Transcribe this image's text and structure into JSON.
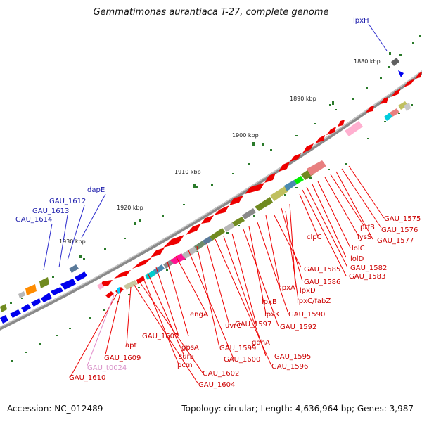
{
  "title": "Gemmatimonas aurantiaca T-27, complete genome",
  "footer": {
    "accession": "Accession: NC_012489",
    "summary": "Topology: circular; Length: 4,636,964 bp; Genes: 3,987"
  },
  "ticks": [
    "1880 kbp",
    "1890 kbp",
    "1900 kbp",
    "1910 kbp",
    "1920 kbp",
    "1930 kbp"
  ],
  "labels_blue": [
    "lpxH",
    "dapE",
    "GAU_1612",
    "GAU_1613",
    "GAU_1614"
  ],
  "labels_red": [
    "GAU_1575",
    "GAU_1576",
    "prfB",
    "GAU_1577",
    "lysS",
    "lolC",
    "lolD",
    "GAU_1582",
    "GAU_1583",
    "clpC",
    "GAU_1585",
    "GAU_1586",
    "lpxA",
    "lpxD",
    "lpxC/fabZ",
    "lpxB",
    "lpxK",
    "GAU_1590",
    "GAU_1592",
    "GAU_1597",
    "gdhA",
    "GAU_1595",
    "GAU_1596",
    "uvrC",
    "GAU_1599",
    "GAU_1600",
    "engA",
    "gpsA",
    "GAU_1607",
    "surE",
    "pcm",
    "GAU_1602",
    "GAU_1604",
    "apt",
    "GAU_1609",
    "GAU_1610"
  ],
  "labels_pink": [
    "GAU_t0024"
  ],
  "colors": {
    "forward": "#0000ee",
    "reverse": "#ee0000",
    "trna": "#e088c8",
    "backbone": "#8a8a8a",
    "tick_dots": "#2a7a2a"
  }
}
